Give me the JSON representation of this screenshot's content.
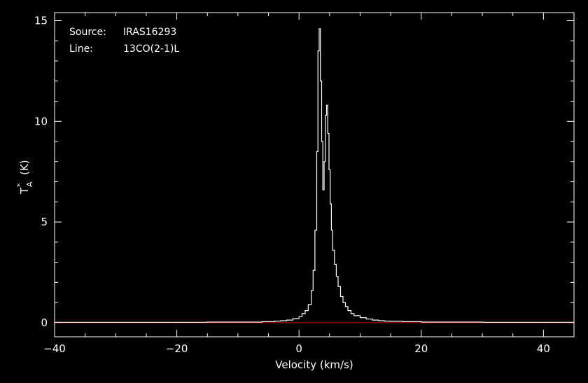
{
  "colors": {
    "background": "#000000",
    "foreground": "#ffffff",
    "baseline": "#cc0000"
  },
  "annotation": {
    "source_label": "Source:",
    "source_value": "IRAS16293",
    "line_label": "Line:",
    "line_value": "13CO(2-1)L"
  },
  "chart_data": {
    "type": "line",
    "style": "histogram",
    "xlabel": "Velocity (km/s)",
    "ylabel_main": "T",
    "ylabel_sup": "*",
    "ylabel_sub": "A",
    "ylabel_unit": "(K)",
    "xlim": [
      -40,
      45
    ],
    "ylim": [
      -0.7,
      15.4
    ],
    "xticks_major": [
      -40,
      -20,
      0,
      20,
      40
    ],
    "xtick_labels": [
      "−40",
      "−20",
      "0",
      "20",
      "40"
    ],
    "yticks_major": [
      0,
      5,
      10,
      15
    ],
    "ytick_labels": [
      "0",
      "5",
      "10",
      "15"
    ],
    "baseline_y": 0,
    "grid": false,
    "series": [
      {
        "x": [
          -40,
          -15,
          -6,
          -4,
          -3,
          -2,
          -1,
          0,
          0.5,
          1,
          1.5,
          2,
          2.3,
          2.6,
          2.9,
          3.1,
          3.3,
          3.5,
          3.7,
          3.9,
          4.1,
          4.3,
          4.5,
          4.7,
          4.9,
          5.1,
          5.3,
          5.5,
          5.8,
          6.1,
          6.4,
          6.8,
          7.2,
          7.6,
          8,
          8.5,
          9,
          10,
          11,
          12,
          13,
          14,
          15,
          17,
          20,
          30,
          45
        ],
        "y": [
          0.02,
          0.03,
          0.05,
          0.08,
          0.1,
          0.13,
          0.2,
          0.3,
          0.45,
          0.6,
          0.9,
          1.6,
          2.6,
          4.6,
          8.5,
          13.5,
          14.6,
          12.0,
          9.0,
          6.6,
          8.0,
          10.3,
          10.8,
          9.4,
          7.6,
          5.9,
          4.6,
          3.6,
          2.9,
          2.3,
          1.8,
          1.3,
          1.0,
          0.8,
          0.6,
          0.45,
          0.35,
          0.25,
          0.18,
          0.13,
          0.1,
          0.08,
          0.07,
          0.05,
          0.03,
          0.02,
          0.02
        ]
      }
    ]
  }
}
